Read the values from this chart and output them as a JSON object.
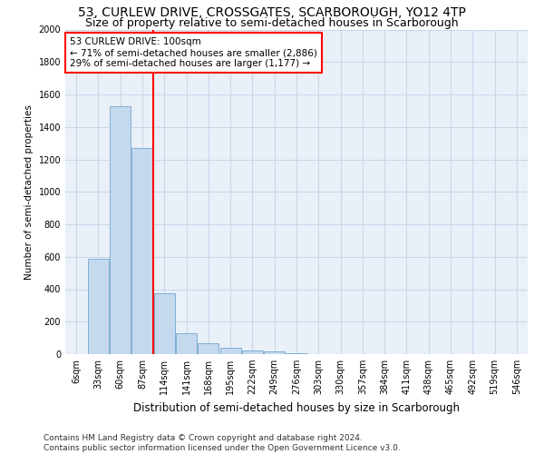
{
  "title": "53, CURLEW DRIVE, CROSSGATES, SCARBOROUGH, YO12 4TP",
  "subtitle": "Size of property relative to semi-detached houses in Scarborough",
  "xlabel": "Distribution of semi-detached houses by size in Scarborough",
  "ylabel": "Number of semi-detached properties",
  "footer": "Contains HM Land Registry data © Crown copyright and database right 2024.\nContains public sector information licensed under the Open Government Licence v3.0.",
  "bin_labels": [
    "6sqm",
    "33sqm",
    "60sqm",
    "87sqm",
    "114sqm",
    "141sqm",
    "168sqm",
    "195sqm",
    "222sqm",
    "249sqm",
    "276sqm",
    "303sqm",
    "330sqm",
    "357sqm",
    "384sqm",
    "411sqm",
    "438sqm",
    "465sqm",
    "492sqm",
    "519sqm",
    "546sqm"
  ],
  "bar_values": [
    0,
    590,
    1530,
    1270,
    375,
    130,
    65,
    40,
    25,
    15,
    8,
    0,
    0,
    0,
    0,
    0,
    0,
    0,
    0,
    0,
    0
  ],
  "bar_color": "#c5d9ee",
  "bar_edge_color": "#7fafd4",
  "red_line_x": 3.5,
  "annotation_title": "53 CURLEW DRIVE: 100sqm",
  "annotation_line1": "← 71% of semi-detached houses are smaller (2,886)",
  "annotation_line2": "29% of semi-detached houses are larger (1,177) →",
  "annotation_box_color": "white",
  "annotation_box_edge_color": "red",
  "ylim": [
    0,
    2000
  ],
  "yticks": [
    0,
    200,
    400,
    600,
    800,
    1000,
    1200,
    1400,
    1600,
    1800,
    2000
  ],
  "title_fontsize": 10,
  "subtitle_fontsize": 9,
  "xlabel_fontsize": 8.5,
  "ylabel_fontsize": 7.5,
  "tick_fontsize": 7,
  "annotation_fontsize": 7.5,
  "footer_fontsize": 6.5,
  "grid_color": "#c8d8ea",
  "background_color": "#eaf0f8"
}
